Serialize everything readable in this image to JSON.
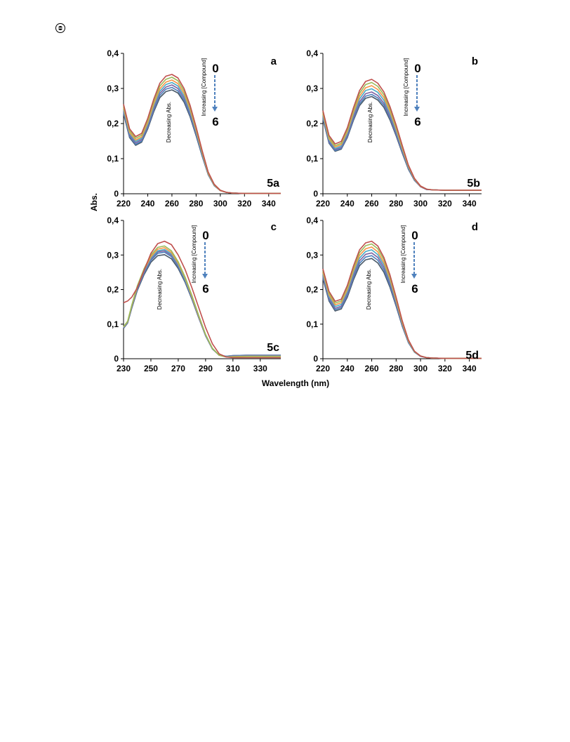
{
  "page": {
    "corner_mark_icon": "circled-bullet-icon"
  },
  "figure": {
    "y_axis_label": "Abs.",
    "x_axis_label": "Wavelength (nm)"
  },
  "series_colors": [
    "#c0504d",
    "#9bbb59",
    "#f79646",
    "#4bacc6",
    "#8064a2",
    "#4f81bd",
    "#4a5a6a"
  ],
  "chart_data": [
    {
      "type": "line",
      "panel_letter": "a",
      "panel_id": "5a",
      "arrow_start_label": "0",
      "arrow_end_label": "6",
      "arrow_text": "Increasing [Compound]",
      "trend_text": "Decreasing Abs.",
      "xlim": [
        220,
        350
      ],
      "x_ticks": [
        220,
        240,
        260,
        280,
        300,
        320,
        340
      ],
      "x_tick_labels": [
        "220",
        "240",
        "260",
        "280",
        "300",
        "320",
        "340"
      ],
      "ylim": [
        0,
        0.4
      ],
      "y_ticks": [
        0,
        0.1,
        0.2,
        0.3,
        0.4
      ],
      "y_tick_labels": [
        "0",
        "0,1",
        "0,2",
        "0,3",
        "0,4"
      ],
      "x": [
        220,
        225,
        230,
        235,
        240,
        245,
        250,
        255,
        260,
        265,
        270,
        275,
        280,
        285,
        290,
        295,
        300,
        305,
        310,
        320,
        330,
        340,
        350
      ],
      "series": [
        {
          "values": [
            0.255,
            0.185,
            0.163,
            0.172,
            0.215,
            0.27,
            0.315,
            0.335,
            0.34,
            0.33,
            0.3,
            0.252,
            0.19,
            0.123,
            0.062,
            0.027,
            0.01,
            0.004,
            0.002,
            0.001,
            0.001,
            0.001,
            0.001
          ]
        },
        {
          "values": [
            0.25,
            0.18,
            0.158,
            0.167,
            0.209,
            0.263,
            0.307,
            0.326,
            0.332,
            0.322,
            0.293,
            0.246,
            0.186,
            0.12,
            0.06,
            0.026,
            0.01,
            0.004,
            0.002,
            0.001,
            0.001,
            0.001,
            0.001
          ]
        },
        {
          "values": [
            0.245,
            0.175,
            0.153,
            0.162,
            0.203,
            0.256,
            0.299,
            0.318,
            0.324,
            0.314,
            0.286,
            0.24,
            0.181,
            0.117,
            0.058,
            0.025,
            0.009,
            0.004,
            0.002,
            0.001,
            0.001,
            0.001,
            0.001
          ]
        },
        {
          "values": [
            0.24,
            0.171,
            0.149,
            0.158,
            0.198,
            0.25,
            0.292,
            0.311,
            0.317,
            0.307,
            0.279,
            0.234,
            0.177,
            0.114,
            0.057,
            0.024,
            0.009,
            0.004,
            0.002,
            0.001,
            0.001,
            0.001,
            0.001
          ]
        },
        {
          "values": [
            0.236,
            0.167,
            0.145,
            0.154,
            0.193,
            0.244,
            0.286,
            0.304,
            0.31,
            0.3,
            0.273,
            0.229,
            0.173,
            0.112,
            0.056,
            0.024,
            0.009,
            0.004,
            0.002,
            0.001,
            0.001,
            0.001,
            0.001
          ]
        },
        {
          "values": [
            0.232,
            0.163,
            0.141,
            0.15,
            0.189,
            0.239,
            0.28,
            0.298,
            0.303,
            0.293,
            0.267,
            0.224,
            0.169,
            0.109,
            0.055,
            0.023,
            0.009,
            0.004,
            0.002,
            0.001,
            0.001,
            0.001,
            0.001
          ]
        },
        {
          "values": [
            0.228,
            0.16,
            0.138,
            0.147,
            0.185,
            0.234,
            0.274,
            0.291,
            0.296,
            0.287,
            0.261,
            0.219,
            0.165,
            0.107,
            0.054,
            0.023,
            0.009,
            0.004,
            0.002,
            0.001,
            0.001,
            0.001,
            0.001
          ]
        }
      ]
    },
    {
      "type": "line",
      "panel_letter": "b",
      "panel_id": "5b",
      "arrow_start_label": "0",
      "arrow_end_label": "6",
      "arrow_text": "Increasing [Compound]",
      "trend_text": "Decreasing Abs.",
      "xlim": [
        220,
        350
      ],
      "x_ticks": [
        220,
        240,
        260,
        280,
        300,
        320,
        340
      ],
      "x_tick_labels": [
        "220",
        "240",
        "260",
        "280",
        "300",
        "320",
        "340"
      ],
      "ylim": [
        0,
        0.4
      ],
      "y_ticks": [
        0,
        0.1,
        0.2,
        0.3,
        0.4
      ],
      "y_tick_labels": [
        "0",
        "0,1",
        "0,2",
        "0,3",
        "0,4"
      ],
      "x": [
        220,
        225,
        230,
        235,
        240,
        245,
        250,
        255,
        260,
        265,
        270,
        275,
        280,
        285,
        290,
        295,
        300,
        305,
        310,
        320,
        330,
        340,
        350
      ],
      "series": [
        {
          "values": [
            0.237,
            0.166,
            0.142,
            0.149,
            0.188,
            0.245,
            0.294,
            0.32,
            0.326,
            0.315,
            0.29,
            0.248,
            0.196,
            0.138,
            0.082,
            0.044,
            0.022,
            0.013,
            0.011,
            0.01,
            0.01,
            0.01,
            0.01
          ]
        },
        {
          "values": [
            0.232,
            0.161,
            0.137,
            0.144,
            0.182,
            0.238,
            0.286,
            0.311,
            0.317,
            0.306,
            0.282,
            0.241,
            0.19,
            0.134,
            0.08,
            0.043,
            0.022,
            0.013,
            0.011,
            0.01,
            0.01,
            0.01,
            0.01
          ]
        },
        {
          "values": [
            0.228,
            0.157,
            0.133,
            0.14,
            0.177,
            0.231,
            0.278,
            0.302,
            0.308,
            0.297,
            0.274,
            0.234,
            0.185,
            0.13,
            0.078,
            0.042,
            0.021,
            0.013,
            0.011,
            0.01,
            0.01,
            0.01,
            0.01
          ]
        },
        {
          "values": [
            0.224,
            0.153,
            0.129,
            0.136,
            0.172,
            0.225,
            0.27,
            0.294,
            0.299,
            0.289,
            0.266,
            0.227,
            0.179,
            0.126,
            0.076,
            0.041,
            0.021,
            0.013,
            0.011,
            0.01,
            0.01,
            0.01,
            0.01
          ]
        },
        {
          "values": [
            0.22,
            0.149,
            0.126,
            0.132,
            0.167,
            0.218,
            0.262,
            0.285,
            0.29,
            0.28,
            0.258,
            0.22,
            0.173,
            0.122,
            0.074,
            0.04,
            0.02,
            0.012,
            0.011,
            0.01,
            0.01,
            0.01,
            0.01
          ]
        },
        {
          "values": [
            0.216,
            0.146,
            0.123,
            0.129,
            0.163,
            0.213,
            0.256,
            0.278,
            0.283,
            0.273,
            0.252,
            0.215,
            0.169,
            0.119,
            0.072,
            0.039,
            0.02,
            0.012,
            0.011,
            0.01,
            0.01,
            0.01,
            0.01
          ]
        },
        {
          "values": [
            0.213,
            0.144,
            0.121,
            0.127,
            0.16,
            0.209,
            0.251,
            0.272,
            0.277,
            0.267,
            0.246,
            0.21,
            0.165,
            0.116,
            0.07,
            0.038,
            0.02,
            0.012,
            0.011,
            0.01,
            0.01,
            0.01,
            0.01
          ]
        }
      ]
    },
    {
      "type": "line",
      "panel_letter": "c",
      "panel_id": "5c",
      "arrow_start_label": "0",
      "arrow_end_label": "6",
      "arrow_text": "Increasing [Compound]",
      "trend_text": "Decreasing Abs.",
      "xlim": [
        230,
        345
      ],
      "x_ticks": [
        230,
        250,
        270,
        290,
        310,
        330
      ],
      "x_tick_labels": [
        "230",
        "250",
        "270",
        "290",
        "310",
        "330"
      ],
      "ylim": [
        0,
        0.4
      ],
      "y_ticks": [
        0,
        0.1,
        0.2,
        0.3,
        0.4
      ],
      "y_tick_labels": [
        "0",
        "0,1",
        "0,2",
        "0,3",
        "0,4"
      ],
      "x": [
        230,
        233,
        236,
        240,
        245,
        250,
        255,
        260,
        265,
        270,
        275,
        280,
        285,
        290,
        295,
        300,
        305,
        310,
        320,
        330,
        340,
        345
      ],
      "series": [
        {
          "values": [
            0.162,
            0.167,
            0.178,
            0.205,
            0.255,
            0.305,
            0.333,
            0.34,
            0.33,
            0.3,
            0.258,
            0.205,
            0.148,
            0.09,
            0.043,
            0.014,
            0.005,
            0.003,
            0.003,
            0.003,
            0.003,
            0.003
          ]
        },
        {
          "values": [
            0.093,
            0.108,
            0.155,
            0.21,
            0.26,
            0.3,
            0.322,
            0.326,
            0.312,
            0.28,
            0.236,
            0.183,
            0.125,
            0.07,
            0.03,
            0.01,
            0.005,
            0.005,
            0.006,
            0.006,
            0.006,
            0.006
          ]
        },
        {
          "values": [
            0.092,
            0.107,
            0.153,
            0.207,
            0.256,
            0.295,
            0.317,
            0.321,
            0.307,
            0.276,
            0.233,
            0.18,
            0.123,
            0.069,
            0.03,
            0.01,
            0.005,
            0.006,
            0.007,
            0.007,
            0.007,
            0.007
          ]
        },
        {
          "values": [
            0.091,
            0.106,
            0.152,
            0.205,
            0.253,
            0.291,
            0.312,
            0.316,
            0.303,
            0.272,
            0.229,
            0.178,
            0.122,
            0.068,
            0.029,
            0.01,
            0.006,
            0.007,
            0.008,
            0.008,
            0.008,
            0.008
          ]
        },
        {
          "values": [
            0.09,
            0.105,
            0.15,
            0.203,
            0.25,
            0.288,
            0.309,
            0.312,
            0.299,
            0.269,
            0.227,
            0.176,
            0.12,
            0.067,
            0.029,
            0.01,
            0.006,
            0.008,
            0.009,
            0.009,
            0.009,
            0.009
          ]
        },
        {
          "values": [
            0.089,
            0.104,
            0.148,
            0.2,
            0.247,
            0.284,
            0.305,
            0.308,
            0.295,
            0.266,
            0.224,
            0.174,
            0.119,
            0.066,
            0.029,
            0.01,
            0.007,
            0.009,
            0.01,
            0.01,
            0.01,
            0.01
          ]
        },
        {
          "values": [
            0.088,
            0.103,
            0.146,
            0.197,
            0.243,
            0.279,
            0.298,
            0.301,
            0.289,
            0.261,
            0.221,
            0.172,
            0.118,
            0.066,
            0.028,
            0.01,
            0.007,
            0.009,
            0.01,
            0.01,
            0.01,
            0.01
          ]
        }
      ]
    },
    {
      "type": "line",
      "panel_letter": "d",
      "panel_id": "5d",
      "arrow_start_label": "0",
      "arrow_end_label": "6",
      "arrow_text": "Increasing [Compound]",
      "trend_text": "Decreasing Abs.",
      "xlim": [
        220,
        350
      ],
      "x_ticks": [
        220,
        240,
        260,
        280,
        300,
        320,
        340
      ],
      "x_tick_labels": [
        "220",
        "240",
        "260",
        "280",
        "300",
        "320",
        "340"
      ],
      "ylim": [
        0,
        0.4
      ],
      "y_ticks": [
        0,
        0.1,
        0.2,
        0.3,
        0.4
      ],
      "y_tick_labels": [
        "0",
        "0,1",
        "0,2",
        "0,3",
        "0,4"
      ],
      "x": [
        220,
        225,
        230,
        235,
        240,
        245,
        250,
        255,
        260,
        265,
        270,
        275,
        280,
        285,
        290,
        295,
        300,
        305,
        310,
        320,
        330,
        340,
        350
      ],
      "series": [
        {
          "values": [
            0.26,
            0.195,
            0.166,
            0.172,
            0.212,
            0.268,
            0.315,
            0.335,
            0.34,
            0.326,
            0.293,
            0.242,
            0.178,
            0.11,
            0.055,
            0.022,
            0.008,
            0.003,
            0.002,
            0.001,
            0.001,
            0.001,
            0.001
          ]
        },
        {
          "values": [
            0.255,
            0.19,
            0.161,
            0.167,
            0.206,
            0.261,
            0.307,
            0.327,
            0.332,
            0.318,
            0.286,
            0.236,
            0.174,
            0.107,
            0.054,
            0.021,
            0.008,
            0.003,
            0.002,
            0.001,
            0.001,
            0.001,
            0.001
          ]
        },
        {
          "values": [
            0.25,
            0.185,
            0.156,
            0.162,
            0.2,
            0.254,
            0.299,
            0.318,
            0.323,
            0.309,
            0.278,
            0.23,
            0.169,
            0.104,
            0.052,
            0.021,
            0.008,
            0.003,
            0.002,
            0.001,
            0.001,
            0.001,
            0.001
          ]
        },
        {
          "values": [
            0.245,
            0.18,
            0.151,
            0.157,
            0.194,
            0.247,
            0.291,
            0.31,
            0.315,
            0.301,
            0.271,
            0.224,
            0.165,
            0.102,
            0.051,
            0.02,
            0.008,
            0.003,
            0.002,
            0.001,
            0.001,
            0.001,
            0.001
          ]
        },
        {
          "values": [
            0.24,
            0.175,
            0.146,
            0.152,
            0.188,
            0.24,
            0.283,
            0.302,
            0.306,
            0.293,
            0.264,
            0.218,
            0.16,
            0.099,
            0.05,
            0.02,
            0.007,
            0.003,
            0.002,
            0.001,
            0.001,
            0.001,
            0.001
          ]
        },
        {
          "values": [
            0.236,
            0.171,
            0.142,
            0.148,
            0.183,
            0.234,
            0.276,
            0.294,
            0.298,
            0.285,
            0.257,
            0.212,
            0.156,
            0.096,
            0.048,
            0.019,
            0.007,
            0.003,
            0.002,
            0.001,
            0.001,
            0.001,
            0.001
          ]
        },
        {
          "values": [
            0.232,
            0.167,
            0.138,
            0.144,
            0.178,
            0.228,
            0.269,
            0.286,
            0.29,
            0.277,
            0.25,
            0.206,
            0.152,
            0.094,
            0.047,
            0.019,
            0.007,
            0.003,
            0.002,
            0.001,
            0.001,
            0.001,
            0.001
          ]
        }
      ]
    }
  ]
}
